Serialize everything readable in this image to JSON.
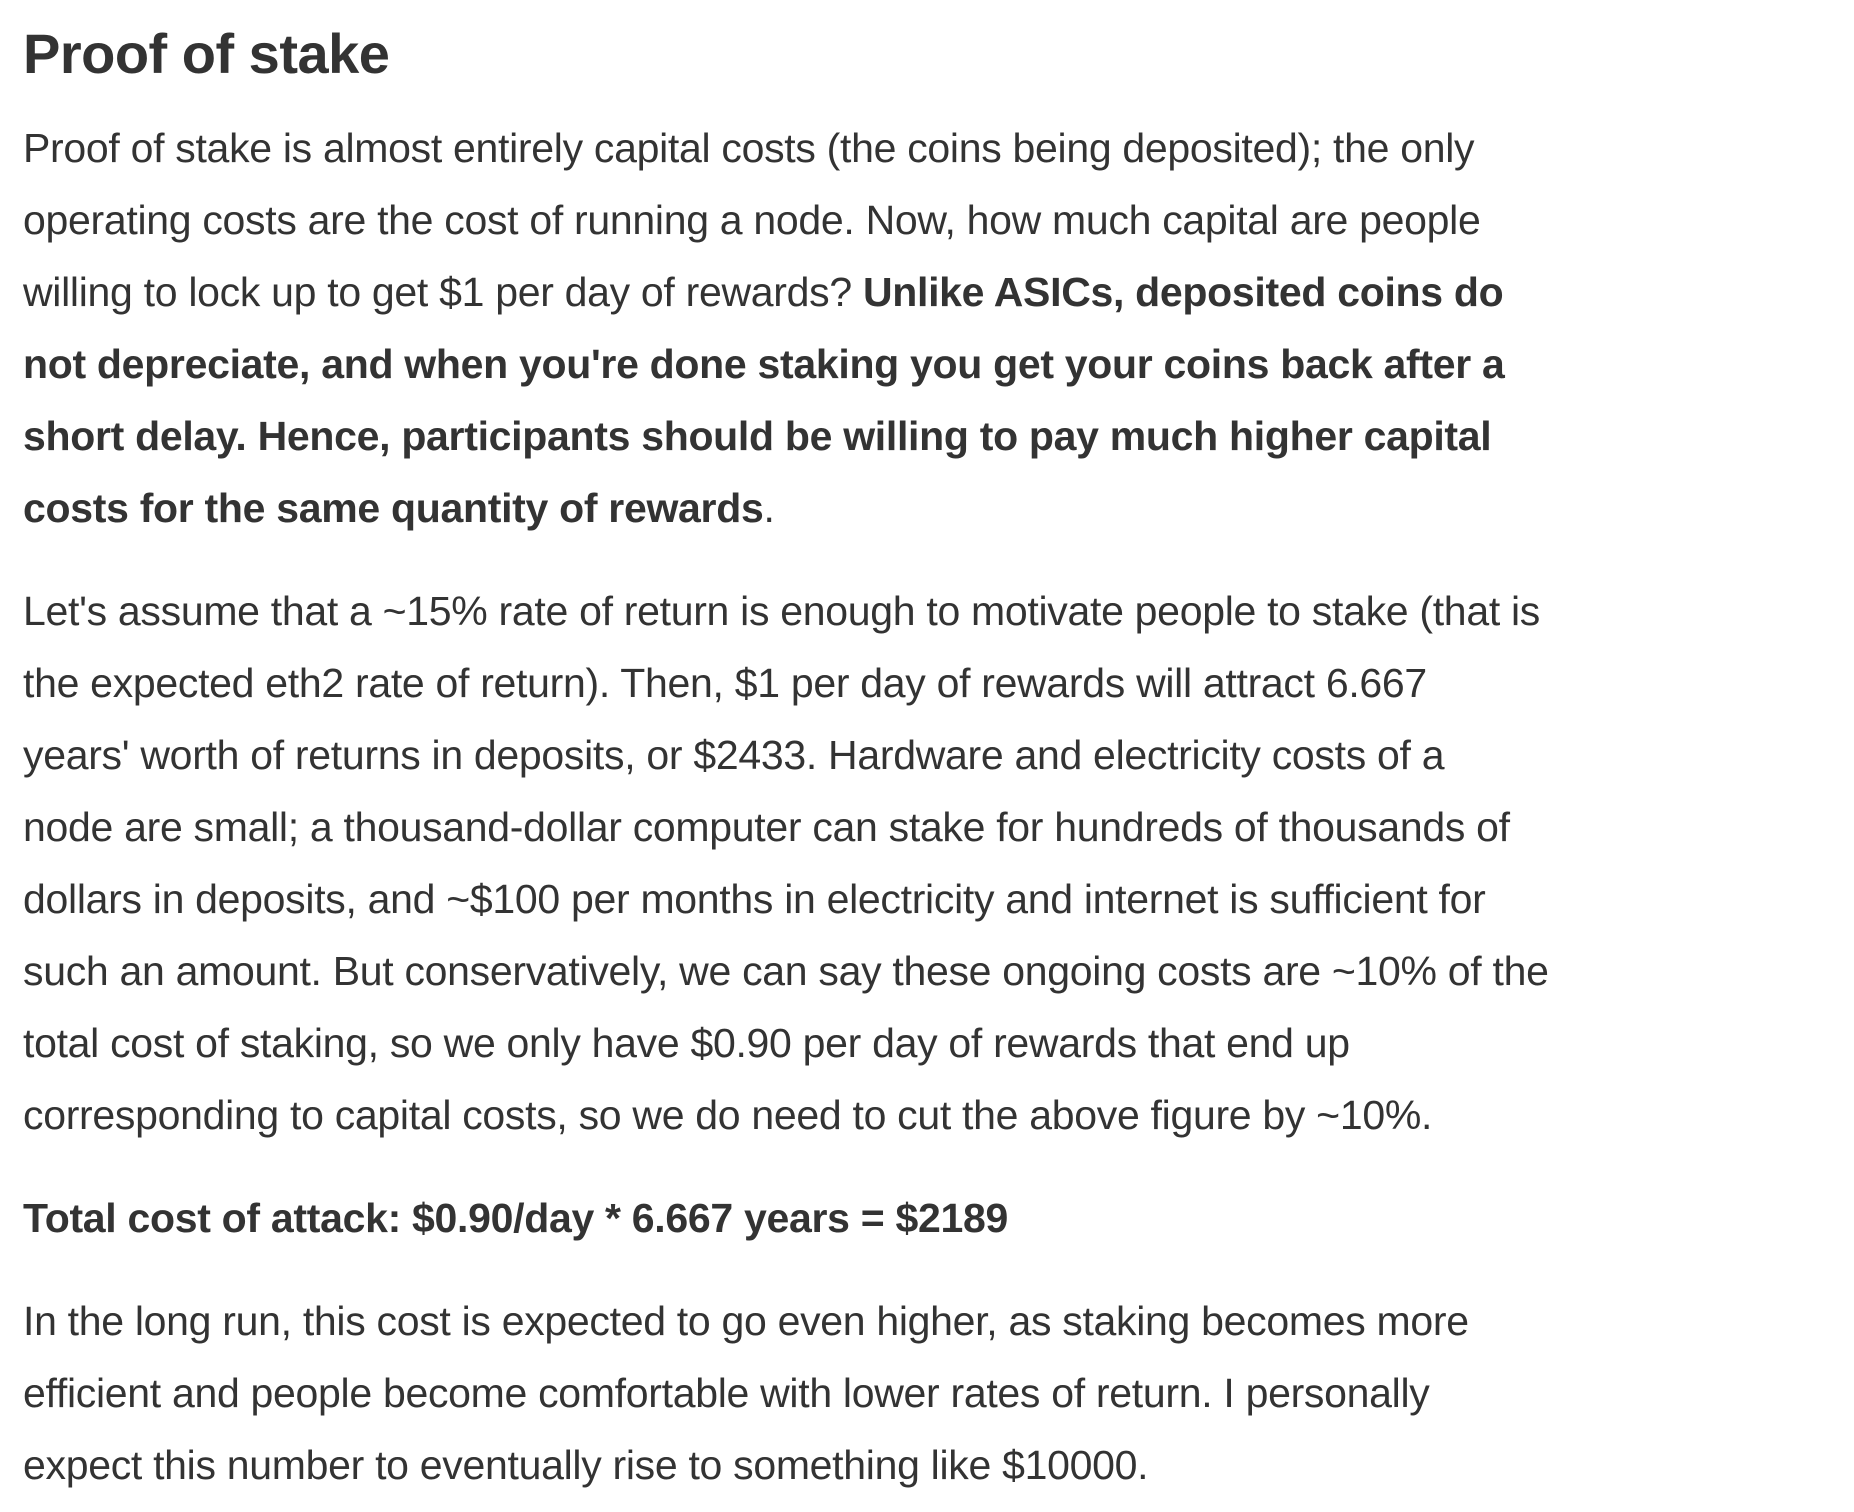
{
  "colors": {
    "background": "#ffffff",
    "text": "#333333"
  },
  "article": {
    "title": "Proof of stake",
    "paragraphs": [
      {
        "name": "paragraph-capital-costs",
        "lines": [
          [
            {
              "t": "Proof of stake is almost entirely capital costs (the coins being deposited); the only",
              "b": false
            }
          ],
          [
            {
              "t": "operating costs are the cost of running a node. Now, how much capital are people",
              "b": false
            }
          ],
          [
            {
              "t": "willing to lock up to get $1 per day of rewards? ",
              "b": false
            },
            {
              "t": "Unlike ASICs, deposited coins do",
              "b": true
            }
          ],
          [
            {
              "t": "not depreciate, and when you're done staking you get your coins back after a",
              "b": true
            }
          ],
          [
            {
              "t": "short delay. Hence, participants should be willing to pay much higher capital",
              "b": true
            }
          ],
          [
            {
              "t": "costs for the same quantity of rewards",
              "b": true
            },
            {
              "t": ".",
              "b": false
            }
          ]
        ]
      },
      {
        "name": "paragraph-rate-of-return",
        "lines": [
          [
            {
              "t": "Let's assume that a ~15% rate of return is enough to motivate people to stake (that is",
              "b": false
            }
          ],
          [
            {
              "t": "the expected eth2 rate of return). Then, $1 per day of rewards will attract 6.667",
              "b": false
            }
          ],
          [
            {
              "t": "years' worth of returns in deposits, or $2433. Hardware and electricity costs of a",
              "b": false
            }
          ],
          [
            {
              "t": "node are small; a thousand-dollar computer can stake for hundreds of thousands of",
              "b": false
            }
          ],
          [
            {
              "t": "dollars in deposits, and ~$100 per months in electricity and internet is sufficient for",
              "b": false
            }
          ],
          [
            {
              "t": "such an amount. But conservatively, we can say these ongoing costs are ~10% of the",
              "b": false
            }
          ],
          [
            {
              "t": "total cost of staking, so we only have $0.90 per day of rewards that end up",
              "b": false
            }
          ],
          [
            {
              "t": "corresponding to capital costs, so we do need to cut the above figure by ~10%.",
              "b": false
            }
          ]
        ]
      },
      {
        "name": "paragraph-total-cost-of-attack",
        "lines": [
          [
            {
              "t": "Total cost of attack: $0.90/day * 6.667 years = $2189",
              "b": true
            }
          ]
        ]
      },
      {
        "name": "paragraph-long-run",
        "lines": [
          [
            {
              "t": "In the long run, this cost is expected to go even higher, as staking becomes more",
              "b": false
            }
          ],
          [
            {
              "t": "efficient and people become comfortable with lower rates of return. I personally",
              "b": false
            }
          ],
          [
            {
              "t": "expect this number to eventually rise to something like $10000.",
              "b": false
            }
          ]
        ]
      }
    ]
  }
}
